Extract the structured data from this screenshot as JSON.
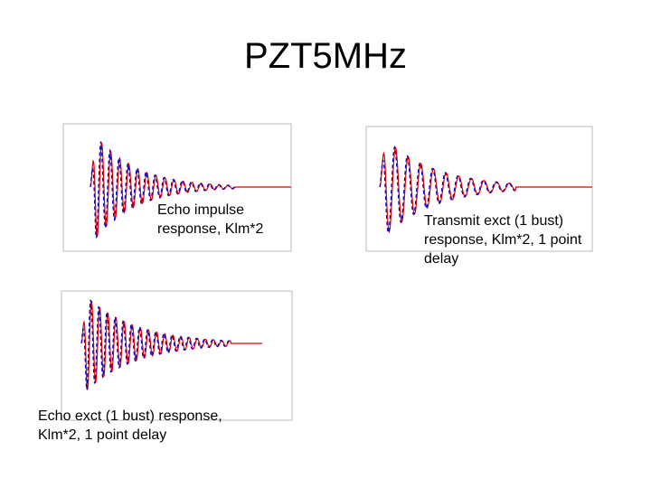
{
  "slide": {
    "title": "PZT5MHz",
    "captions": [
      "Echo impulse response, Klm*2",
      "Transmit exct (1 bust) response, Klm*2, 1 point delay",
      "Echo exct (1 bust) response, Klm*2, 1 point delay"
    ]
  }
}
